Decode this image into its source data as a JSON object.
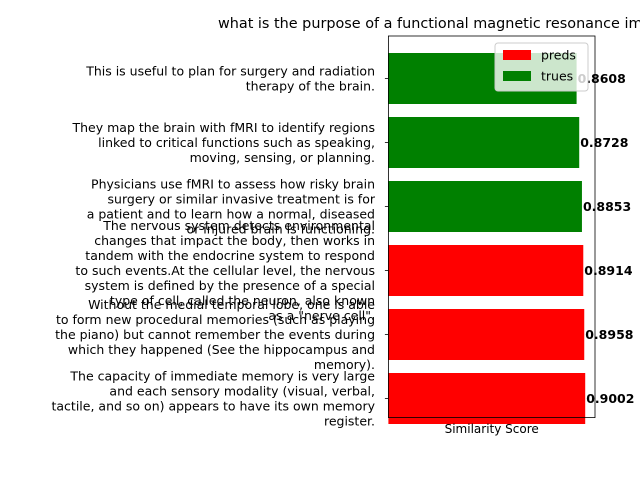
{
  "chart_data": {
    "type": "bar",
    "orientation": "horizontal",
    "title": "what is the purpose of a functional magnetic resonance imaging scan",
    "xlabel": "Similarity Score",
    "ylabel": "",
    "categories": [
      [
        "The capacity of immediate memory is very large",
        "and each sensory modality (visual, verbal,",
        "tactile, and so on) appears to have its own memory",
        "register."
      ],
      [
        "Without the medial temporal lobe, one is able",
        "to form new procedural memories (such as playing",
        "the piano) but cannot remember the events during",
        "which they happened (See the hippocampus and",
        "memory)."
      ],
      [
        "The nervous system detects environmental",
        "changes that impact the body, then works in",
        "tandem with the endocrine system to respond",
        "to such events.At the cellular level, the nervous",
        "system is defined by the presence of a special",
        "type of cell, called the neuron, also known",
        "as a \"nerve cell\"."
      ],
      [
        "Physicians use fMRI to assess how risky brain",
        "surgery or similar invasive treatment is for",
        "a patient and to learn how a normal, diseased",
        "or injured brain is functioning."
      ],
      [
        "They map the brain with fMRI to identify regions",
        "linked to critical functions such as speaking,",
        "moving, sensing, or planning."
      ],
      [
        "This is useful to plan for surgery and radiation",
        "therapy of the brain."
      ]
    ],
    "values": [
      0.9002,
      0.8958,
      0.8914,
      0.8853,
      0.8728,
      0.8608
    ],
    "value_labels": [
      "0.9002",
      "0.8958",
      "0.8914",
      "0.8853",
      "0.8728",
      "0.8608"
    ],
    "series_of_bar": [
      "preds",
      "preds",
      "preds",
      "trues",
      "trues",
      "trues"
    ],
    "series": [
      {
        "name": "preds",
        "color": "#ff0000"
      },
      {
        "name": "trues",
        "color": "#008000"
      }
    ],
    "legend": {
      "placement": "top-right"
    },
    "xlim": [
      0,
      0.945
    ],
    "grid": false
  }
}
